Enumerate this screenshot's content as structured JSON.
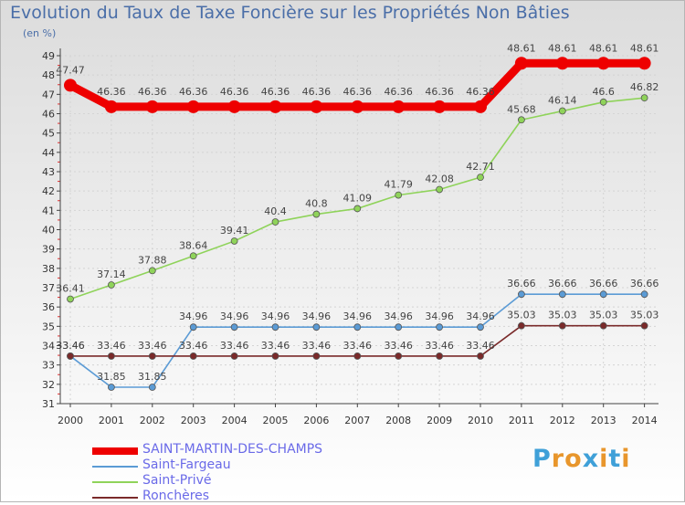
{
  "title": "Evolution du Taux de Taxe Foncière sur les Propriétés Non Bâties",
  "subtitle": "(en %)",
  "logo": {
    "letters": [
      "P",
      "r",
      "o",
      "x",
      "i",
      "t",
      "i"
    ],
    "colors": [
      "#3fa0d8",
      "#e8962c",
      "#e8962c",
      "#3fa0d8",
      "#e8962c",
      "#3fa0d8",
      "#e8962c"
    ]
  },
  "chart_data": {
    "type": "line",
    "title": "Evolution du Taux de Taxe Foncière sur les Propriétés Non Bâties",
    "ylabel": "(en %)",
    "x": [
      "2000",
      "2001",
      "2002",
      "2003",
      "2004",
      "2005",
      "2006",
      "2007",
      "2008",
      "2009",
      "2010",
      "2011",
      "2012",
      "2013",
      "2014"
    ],
    "ylim": [
      31,
      49
    ],
    "yticks": [
      31,
      32,
      33,
      34,
      35,
      36,
      37,
      38,
      39,
      40,
      41,
      42,
      43,
      44,
      45,
      46,
      47,
      48,
      49
    ],
    "grid": true,
    "legend_position": "bottom-left",
    "series": [
      {
        "name": "SAINT-MARTIN-DES-CHAMPS",
        "color": "#ee0000",
        "values": [
          47.47,
          46.36,
          46.36,
          46.36,
          46.36,
          46.36,
          46.36,
          46.36,
          46.36,
          46.36,
          46.36,
          48.61,
          48.61,
          48.61,
          48.61
        ],
        "labels": [
          "47.47",
          "46.36",
          "46.36",
          "46.36",
          "46.36",
          "46.36",
          "46.36",
          "46.36",
          "46.36",
          "46.36",
          "46.36",
          "48.61",
          "48.61",
          "48.61",
          "48.61"
        ]
      },
      {
        "name": "Saint-Fargeau",
        "color": "#5b9bd5",
        "values": [
          33.46,
          31.85,
          31.85,
          34.96,
          34.96,
          34.96,
          34.96,
          34.96,
          34.96,
          34.96,
          34.96,
          36.66,
          36.66,
          36.66,
          36.66
        ],
        "labels": [
          "33.46",
          "31.85",
          "31.85",
          "34.96",
          "34.96",
          "34.96",
          "34.96",
          "34.96",
          "34.96",
          "34.96",
          "34.96",
          "36.66",
          "36.66",
          "36.66",
          "36.66"
        ]
      },
      {
        "name": "Saint-Privé",
        "color": "#8fd35a",
        "values": [
          36.41,
          37.14,
          37.88,
          38.64,
          39.41,
          40.4,
          40.8,
          41.09,
          41.79,
          42.08,
          42.71,
          45.68,
          46.14,
          46.6,
          46.82
        ],
        "labels": [
          "36.41",
          "37.14",
          "37.88",
          "38.64",
          "39.41",
          "40.4",
          "40.8",
          "41.09",
          "41.79",
          "42.08",
          "42.71",
          "45.68",
          "46.14",
          "46.6",
          "46.82"
        ]
      },
      {
        "name": "Ronchères",
        "color": "#7a2a2a",
        "values": [
          33.46,
          33.46,
          33.46,
          33.46,
          33.46,
          33.46,
          33.46,
          33.46,
          33.46,
          33.46,
          33.46,
          35.03,
          35.03,
          35.03,
          35.03
        ],
        "labels": [
          "33.46",
          "33.46",
          "33.46",
          "33.46",
          "33.46",
          "33.46",
          "33.46",
          "33.46",
          "33.46",
          "33.46",
          "33.46",
          "35.03",
          "35.03",
          "35.03",
          "35.03"
        ]
      }
    ]
  }
}
